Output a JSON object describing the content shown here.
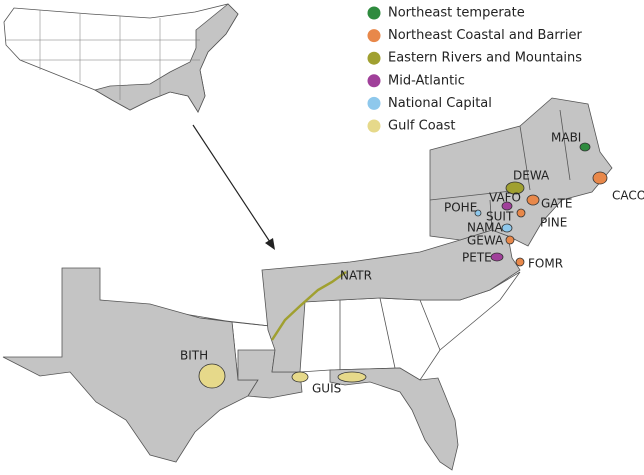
{
  "legend": [
    {
      "label": "Northeast temperate",
      "color": "#2e8b3e"
    },
    {
      "label": "Northeast Coastal and Barrier",
      "color": "#e8884a"
    },
    {
      "label": "Eastern Rivers and Mountains",
      "color": "#a0a030"
    },
    {
      "label": "Mid-Atlantic",
      "color": "#a0409a"
    },
    {
      "label": "National Capital",
      "color": "#8ec8ec"
    },
    {
      "label": "Gulf Coast",
      "color": "#e6d98a"
    }
  ],
  "parks": [
    {
      "label": "MABI"
    },
    {
      "label": "CACO"
    },
    {
      "label": "DEWA"
    },
    {
      "label": "GATE"
    },
    {
      "label": "VAFO"
    },
    {
      "label": "POHE"
    },
    {
      "label": "SUIT"
    },
    {
      "label": "PINE"
    },
    {
      "label": "NAMA"
    },
    {
      "label": "GEWA"
    },
    {
      "label": "PETE"
    },
    {
      "label": "FOMR"
    },
    {
      "label": "NATR"
    },
    {
      "label": "BITH"
    },
    {
      "label": "GUIS"
    }
  ]
}
